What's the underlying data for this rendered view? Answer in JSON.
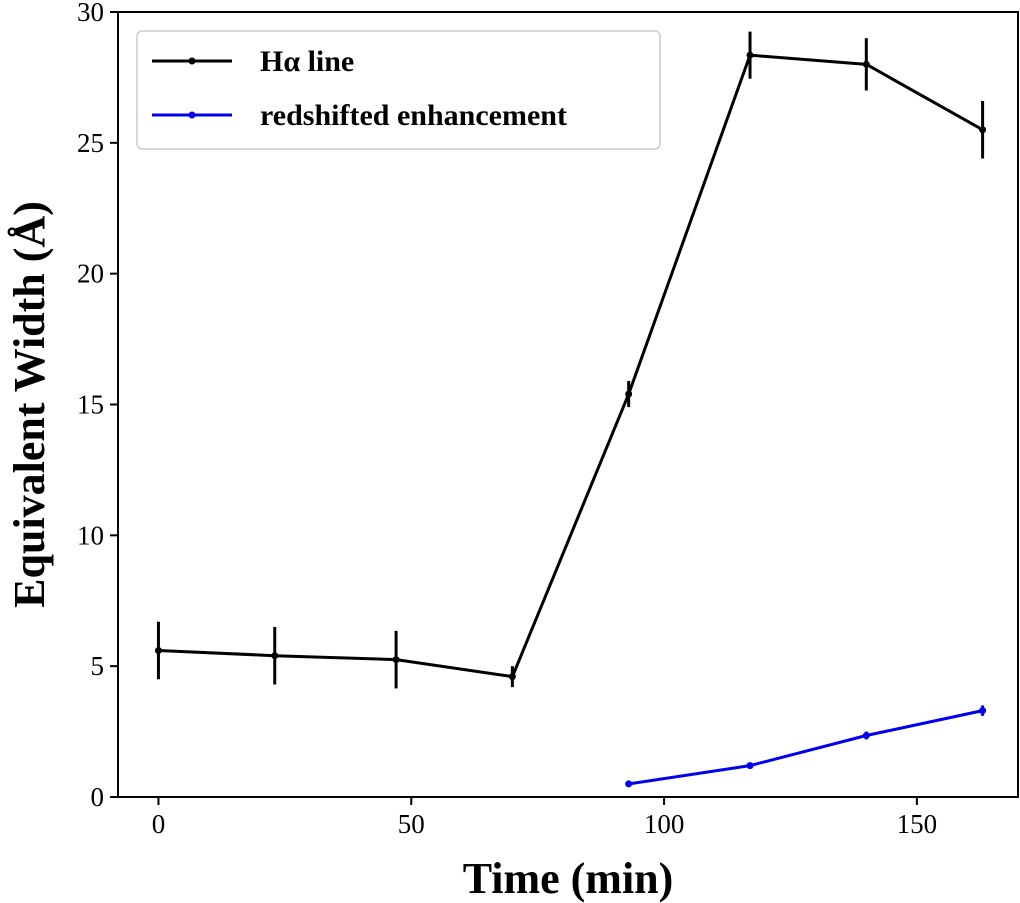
{
  "chart_data": {
    "type": "line",
    "title": "",
    "xlabel": "Time (min)",
    "ylabel": "Equivalent Width (Å)",
    "xlim": [
      -8,
      170
    ],
    "ylim": [
      0,
      30
    ],
    "xticks": [
      0,
      50,
      100,
      150
    ],
    "yticks": [
      0,
      5,
      10,
      15,
      20,
      25,
      30
    ],
    "grid": false,
    "legend_position": "top-left",
    "series": [
      {
        "name": "Hα line",
        "color": "#000000",
        "x": [
          0,
          23,
          47,
          70,
          93,
          117,
          140,
          163
        ],
        "y": [
          5.6,
          5.4,
          5.25,
          4.6,
          15.4,
          28.35,
          28.0,
          25.5
        ],
        "yerr": [
          1.1,
          1.1,
          1.1,
          0.4,
          0.5,
          0.9,
          1.0,
          1.1
        ]
      },
      {
        "name": "redshifted enhancement",
        "color": "#0000ee",
        "x": [
          93,
          117,
          140,
          163
        ],
        "y": [
          0.5,
          1.2,
          2.35,
          3.3
        ],
        "yerr": [
          0.05,
          0.1,
          0.15,
          0.2
        ]
      }
    ]
  }
}
